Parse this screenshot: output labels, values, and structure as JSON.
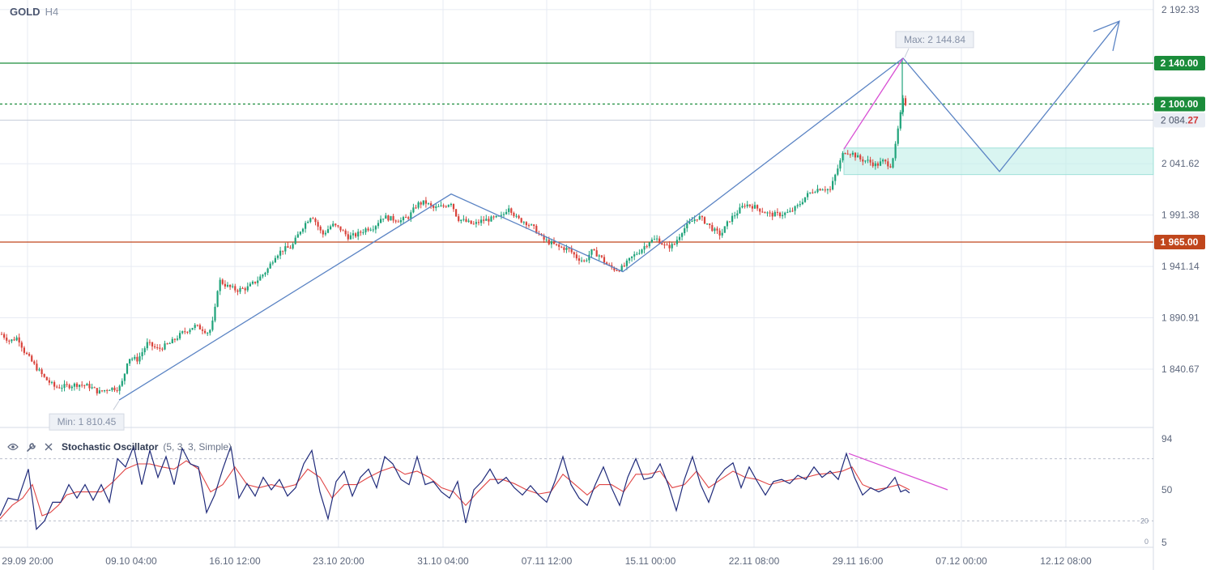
{
  "header": {
    "symbol": "GOLD",
    "timeframe": "H4"
  },
  "indicator": {
    "name": "Stochastic Oscillator",
    "params": "(5, 3, 3, Simple)"
  },
  "icons": {
    "eye": "eye-icon",
    "settings": "wrench-icon",
    "close": "close-icon"
  },
  "chart_data": {
    "type": "candlestick",
    "y_axis": {
      "range": [
        1790.0,
        2197.0
      ],
      "ticks": [
        "2 192.33",
        "2 041.62",
        "1 991.38",
        "1 941.14",
        "1 890.91",
        "1 840.67"
      ],
      "tick_values": [
        2192.33,
        2041.62,
        1991.38,
        1941.14,
        1890.91,
        1840.67
      ]
    },
    "x_axis": {
      "ticks": [
        "29.09 20:00",
        "09.10 04:00",
        "16.10 12:00",
        "23.10 20:00",
        "31.10 04:00",
        "07.11 12:00",
        "15.11 00:00",
        "22.11 08:00",
        "29.11 16:00",
        "07.12 00:00",
        "12.12 08:00"
      ]
    },
    "levels": [
      {
        "label": "2 140.00",
        "value": 2140.0,
        "color": "#1a8c3a",
        "style": "solid"
      },
      {
        "label": "2 100.00",
        "value": 2100.0,
        "color": "#1a8c3a",
        "style": "dashed"
      },
      {
        "label": "1 965.00",
        "value": 1965.0,
        "color": "#c0461c",
        "style": "solid"
      }
    ],
    "current_price": {
      "label_main": "2 084.",
      "label_tail": "27",
      "value": 2084.27
    },
    "annotations": {
      "max_label": "Max: 2 144.84",
      "max_value": 2144.84,
      "min_label": "Min: 1 810.45",
      "min_value": 1810.45
    },
    "zone": {
      "from": 2031.0,
      "to": 2057.0,
      "color": "#bfeee8"
    },
    "zigzag": [
      [
        147,
        1810.45
      ],
      [
        557,
        2012
      ],
      [
        769,
        1936
      ],
      [
        1115,
        2144.84
      ],
      [
        1234,
        2034
      ],
      [
        1382,
        2181
      ]
    ],
    "arrow_head": [
      [
        1350,
        2171
      ],
      [
        1382,
        2181
      ],
      [
        1374,
        2152
      ]
    ],
    "divergence_price": [
      [
        1042,
        2056
      ],
      [
        1115,
        2144.84
      ]
    ],
    "candle_anchors": [
      [
        2,
        1875
      ],
      [
        12,
        1868
      ],
      [
        22,
        1872
      ],
      [
        30,
        1858
      ],
      [
        42,
        1845
      ],
      [
        55,
        1832
      ],
      [
        68,
        1823
      ],
      [
        82,
        1824
      ],
      [
        96,
        1826
      ],
      [
        110,
        1824
      ],
      [
        122,
        1818
      ],
      [
        135,
        1822
      ],
      [
        147,
        1822
      ],
      [
        152,
        1830
      ],
      [
        158,
        1852
      ],
      [
        170,
        1850
      ],
      [
        182,
        1866
      ],
      [
        195,
        1860
      ],
      [
        210,
        1866
      ],
      [
        225,
        1876
      ],
      [
        240,
        1883
      ],
      [
        250,
        1880
      ],
      [
        258,
        1876
      ],
      [
        264,
        1890
      ],
      [
        270,
        1928
      ],
      [
        280,
        1922
      ],
      [
        292,
        1918
      ],
      [
        305,
        1920
      ],
      [
        318,
        1928
      ],
      [
        330,
        1938
      ],
      [
        340,
        1952
      ],
      [
        350,
        1958
      ],
      [
        360,
        1960
      ],
      [
        372,
        1978
      ],
      [
        385,
        1992
      ],
      [
        398,
        1972
      ],
      [
        410,
        1982
      ],
      [
        420,
        1978
      ],
      [
        430,
        1970
      ],
      [
        440,
        1972
      ],
      [
        452,
        1978
      ],
      [
        462,
        1980
      ],
      [
        472,
        1990
      ],
      [
        482,
        1988
      ],
      [
        495,
        1986
      ],
      [
        505,
        1990
      ],
      [
        515,
        2002
      ],
      [
        525,
        2004
      ],
      [
        535,
        1998
      ],
      [
        548,
        2000
      ],
      [
        557,
        2004
      ],
      [
        565,
        1988
      ],
      [
        575,
        1985
      ],
      [
        585,
        1982
      ],
      [
        595,
        1986
      ],
      [
        610,
        1988
      ],
      [
        620,
        1990
      ],
      [
        628,
        2000
      ],
      [
        638,
        1988
      ],
      [
        650,
        1984
      ],
      [
        660,
        1978
      ],
      [
        670,
        1968
      ],
      [
        680,
        1964
      ],
      [
        690,
        1960
      ],
      [
        702,
        1958
      ],
      [
        712,
        1950
      ],
      [
        722,
        1946
      ],
      [
        730,
        1956
      ],
      [
        740,
        1952
      ],
      [
        750,
        1942
      ],
      [
        760,
        1938
      ],
      [
        769,
        1940
      ],
      [
        780,
        1950
      ],
      [
        792,
        1958
      ],
      [
        802,
        1966
      ],
      [
        812,
        1968
      ],
      [
        822,
        1960
      ],
      [
        832,
        1962
      ],
      [
        842,
        1976
      ],
      [
        852,
        1984
      ],
      [
        862,
        1990
      ],
      [
        872,
        1984
      ],
      [
        882,
        1976
      ],
      [
        890,
        1972
      ],
      [
        900,
        1986
      ],
      [
        910,
        1994
      ],
      [
        920,
        2002
      ],
      [
        930,
        2000
      ],
      [
        940,
        1996
      ],
      [
        950,
        1992
      ],
      [
        962,
        1992
      ],
      [
        975,
        1994
      ],
      [
        985,
        2000
      ],
      [
        995,
        2010
      ],
      [
        1005,
        2016
      ],
      [
        1015,
        2018
      ],
      [
        1025,
        2016
      ],
      [
        1032,
        2032
      ],
      [
        1042,
        2054
      ],
      [
        1052,
        2052
      ],
      [
        1062,
        2046
      ],
      [
        1072,
        2044
      ],
      [
        1082,
        2040
      ],
      [
        1090,
        2044
      ],
      [
        1100,
        2040
      ],
      [
        1106,
        2060
      ],
      [
        1110,
        2082
      ],
      [
        1115,
        2104
      ],
      [
        1120,
        2098
      ]
    ],
    "stochastic": {
      "range": [
        0,
        100
      ],
      "ticks": [
        "94",
        "50",
        "20",
        "0",
        "5"
      ],
      "tick_values": [
        94,
        50,
        20,
        0,
        5
      ],
      "levels": [
        80,
        20
      ],
      "k_anchors": [
        [
          0,
          25
        ],
        [
          10,
          42
        ],
        [
          22,
          40
        ],
        [
          35,
          70
        ],
        [
          45,
          12
        ],
        [
          55,
          20
        ],
        [
          65,
          38
        ],
        [
          75,
          38
        ],
        [
          85,
          55
        ],
        [
          95,
          42
        ],
        [
          105,
          55
        ],
        [
          115,
          40
        ],
        [
          125,
          55
        ],
        [
          135,
          38
        ],
        [
          145,
          80
        ],
        [
          155,
          72
        ],
        [
          165,
          92
        ],
        [
          175,
          55
        ],
        [
          185,
          88
        ],
        [
          195,
          62
        ],
        [
          205,
          82
        ],
        [
          215,
          55
        ],
        [
          225,
          90
        ],
        [
          235,
          75
        ],
        [
          245,
          72
        ],
        [
          255,
          28
        ],
        [
          265,
          45
        ],
        [
          275,
          70
        ],
        [
          285,
          92
        ],
        [
          295,
          42
        ],
        [
          305,
          56
        ],
        [
          315,
          44
        ],
        [
          325,
          62
        ],
        [
          335,
          50
        ],
        [
          345,
          60
        ],
        [
          355,
          44
        ],
        [
          365,
          52
        ],
        [
          375,
          75
        ],
        [
          385,
          88
        ],
        [
          395,
          48
        ],
        [
          405,
          22
        ],
        [
          415,
          58
        ],
        [
          425,
          68
        ],
        [
          435,
          44
        ],
        [
          445,
          62
        ],
        [
          455,
          70
        ],
        [
          465,
          52
        ],
        [
          475,
          82
        ],
        [
          485,
          75
        ],
        [
          495,
          60
        ],
        [
          505,
          55
        ],
        [
          515,
          82
        ],
        [
          525,
          55
        ],
        [
          535,
          58
        ],
        [
          545,
          48
        ],
        [
          555,
          42
        ],
        [
          565,
          58
        ],
        [
          575,
          18
        ],
        [
          585,
          50
        ],
        [
          595,
          58
        ],
        [
          605,
          70
        ],
        [
          615,
          56
        ],
        [
          625,
          62
        ],
        [
          635,
          52
        ],
        [
          645,
          45
        ],
        [
          655,
          54
        ],
        [
          665,
          45
        ],
        [
          675,
          38
        ],
        [
          685,
          58
        ],
        [
          695,
          82
        ],
        [
          705,
          55
        ],
        [
          715,
          42
        ],
        [
          725,
          35
        ],
        [
          735,
          55
        ],
        [
          745,
          72
        ],
        [
          755,
          52
        ],
        [
          765,
          35
        ],
        [
          775,
          62
        ],
        [
          785,
          80
        ],
        [
          795,
          60
        ],
        [
          805,
          62
        ],
        [
          815,
          75
        ],
        [
          825,
          55
        ],
        [
          835,
          30
        ],
        [
          845,
          60
        ],
        [
          855,
          82
        ],
        [
          865,
          55
        ],
        [
          875,
          38
        ],
        [
          885,
          60
        ],
        [
          895,
          70
        ],
        [
          905,
          76
        ],
        [
          915,
          52
        ],
        [
          925,
          72
        ],
        [
          935,
          58
        ],
        [
          945,
          45
        ],
        [
          955,
          58
        ],
        [
          965,
          60
        ],
        [
          975,
          56
        ],
        [
          985,
          64
        ],
        [
          995,
          60
        ],
        [
          1005,
          72
        ],
        [
          1015,
          62
        ],
        [
          1025,
          68
        ],
        [
          1035,
          60
        ],
        [
          1045,
          85
        ],
        [
          1055,
          62
        ],
        [
          1065,
          45
        ],
        [
          1075,
          52
        ],
        [
          1085,
          48
        ],
        [
          1095,
          52
        ],
        [
          1105,
          62
        ],
        [
          1112,
          48
        ],
        [
          1118,
          50
        ],
        [
          1123,
          47
        ]
      ],
      "d_anchors": [
        [
          0,
          22
        ],
        [
          15,
          35
        ],
        [
          28,
          42
        ],
        [
          40,
          55
        ],
        [
          52,
          25
        ],
        [
          62,
          28
        ],
        [
          72,
          35
        ],
        [
          82,
          45
        ],
        [
          95,
          48
        ],
        [
          110,
          48
        ],
        [
          125,
          48
        ],
        [
          140,
          58
        ],
        [
          155,
          70
        ],
        [
          170,
          75
        ],
        [
          185,
          75
        ],
        [
          200,
          72
        ],
        [
          215,
          70
        ],
        [
          230,
          78
        ],
        [
          245,
          70
        ],
        [
          260,
          48
        ],
        [
          275,
          55
        ],
        [
          290,
          72
        ],
        [
          305,
          55
        ],
        [
          320,
          52
        ],
        [
          335,
          55
        ],
        [
          350,
          52
        ],
        [
          365,
          55
        ],
        [
          380,
          70
        ],
        [
          395,
          62
        ],
        [
          410,
          42
        ],
        [
          425,
          55
        ],
        [
          440,
          55
        ],
        [
          455,
          62
        ],
        [
          470,
          68
        ],
        [
          485,
          72
        ],
        [
          500,
          65
        ],
        [
          515,
          68
        ],
        [
          530,
          62
        ],
        [
          545,
          52
        ],
        [
          560,
          48
        ],
        [
          575,
          35
        ],
        [
          590,
          48
        ],
        [
          605,
          60
        ],
        [
          620,
          60
        ],
        [
          635,
          56
        ],
        [
          650,
          50
        ],
        [
          665,
          46
        ],
        [
          680,
          48
        ],
        [
          695,
          65
        ],
        [
          710,
          55
        ],
        [
          725,
          45
        ],
        [
          740,
          55
        ],
        [
          755,
          55
        ],
        [
          770,
          48
        ],
        [
          785,
          65
        ],
        [
          800,
          65
        ],
        [
          815,
          68
        ],
        [
          830,
          52
        ],
        [
          845,
          55
        ],
        [
          860,
          68
        ],
        [
          875,
          52
        ],
        [
          890,
          60
        ],
        [
          905,
          68
        ],
        [
          920,
          62
        ],
        [
          935,
          60
        ],
        [
          950,
          55
        ],
        [
          965,
          58
        ],
        [
          980,
          60
        ],
        [
          995,
          62
        ],
        [
          1010,
          65
        ],
        [
          1025,
          66
        ],
        [
          1040,
          68
        ],
        [
          1052,
          72
        ],
        [
          1065,
          55
        ],
        [
          1080,
          50
        ],
        [
          1095,
          52
        ],
        [
          1110,
          55
        ],
        [
          1123,
          50
        ]
      ],
      "divergence": [
        [
          1048,
          85
        ],
        [
          1170,
          50
        ]
      ]
    }
  }
}
